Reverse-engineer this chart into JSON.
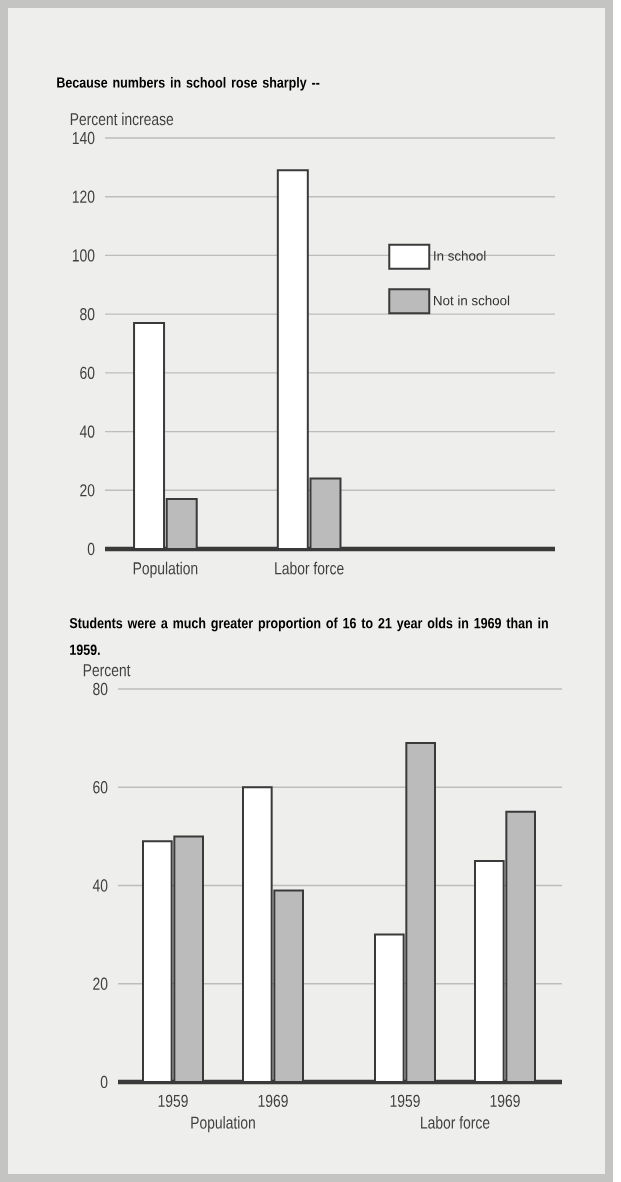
{
  "chart_data": [
    {
      "type": "bar",
      "title": "Because numbers in school rose sharply --",
      "ylabel": "Percent increase",
      "categories": [
        "Population",
        "Labor force"
      ],
      "series": [
        {
          "name": "In school",
          "color": "#ffffff",
          "values": [
            77,
            129
          ]
        },
        {
          "name": "Not in school",
          "color": "#bbbbbb",
          "values": [
            17,
            24
          ]
        }
      ],
      "ylim": [
        0,
        140
      ],
      "yticks": [
        0,
        20,
        40,
        60,
        80,
        100,
        120,
        140
      ],
      "grid": "y",
      "legend": "right"
    },
    {
      "type": "bar",
      "title": "Students were a much greater proportion of 16 to 21 year olds in 1969 than in 1959.",
      "ylabel": "Percent",
      "categories": [
        "1959",
        "1969",
        "1959",
        "1969"
      ],
      "series": [
        {
          "color": "#ffffff",
          "values": [
            49,
            60,
            30,
            45
          ]
        },
        {
          "color": "#bbbbbb",
          "values": [
            50,
            39,
            69,
            55
          ]
        }
      ],
      "annotations": [
        "Population",
        "Labor force"
      ],
      "ylim": [
        0,
        80
      ],
      "yticks": [
        0,
        20,
        40,
        60,
        80
      ],
      "grid": "y"
    }
  ]
}
